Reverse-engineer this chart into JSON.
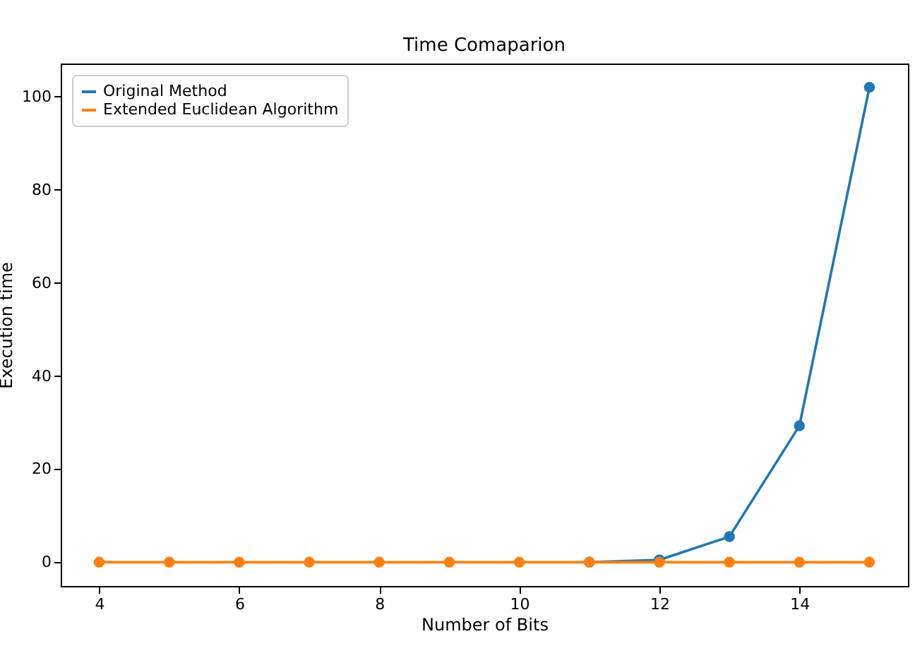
{
  "chart_data": {
    "type": "line",
    "title": "Time Comaparion",
    "xlabel": "Number of Bits",
    "ylabel": "Execution time",
    "x": [
      4,
      5,
      6,
      7,
      8,
      9,
      10,
      11,
      12,
      13,
      14,
      15
    ],
    "series": [
      {
        "name": "Original Method",
        "color": "#1f77b4",
        "values": [
          null,
          null,
          null,
          null,
          null,
          null,
          null,
          0,
          0.5,
          5.5,
          29.3,
          102
        ]
      },
      {
        "name": "Extended Euclidean Algorithm",
        "color": "#ff7f0e",
        "values": [
          0,
          0,
          0,
          0,
          0,
          0,
          0,
          0,
          0,
          0,
          0,
          0
        ]
      }
    ],
    "xlim": [
      3.45,
      15.55
    ],
    "ylim": [
      -5.1,
      107.1
    ],
    "xticks": [
      4,
      6,
      8,
      10,
      12,
      14
    ],
    "yticks": [
      0,
      20,
      40,
      60,
      80,
      100
    ],
    "legend": "top left",
    "marker": "circle",
    "line_style": "solid",
    "grid": false
  }
}
